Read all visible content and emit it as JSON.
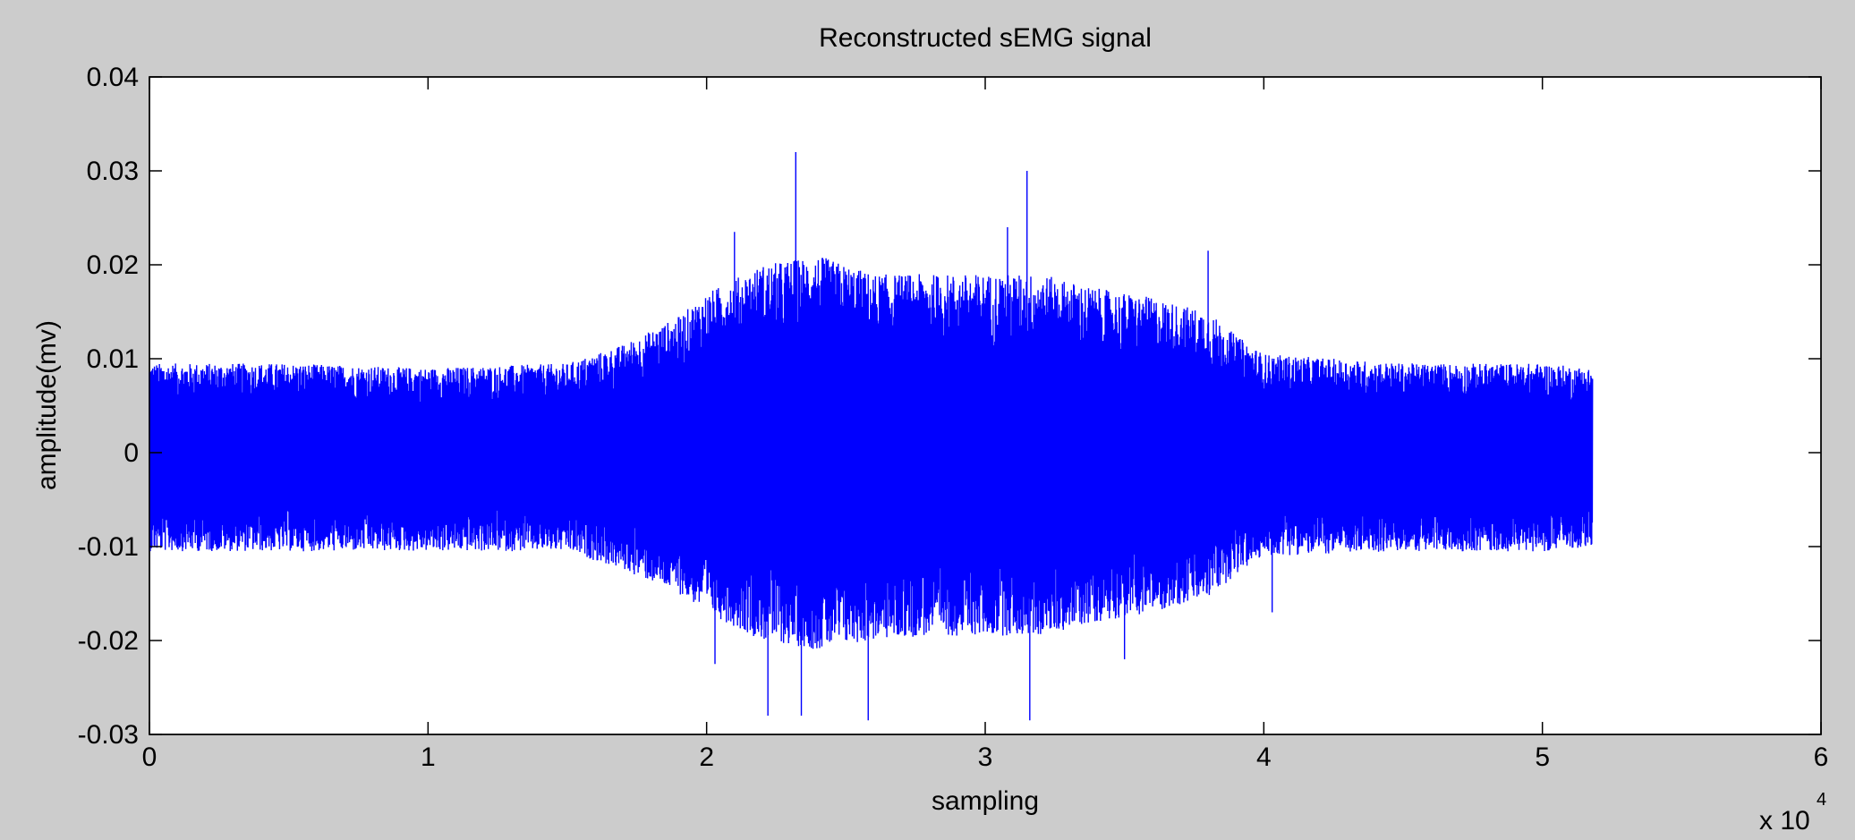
{
  "figure": {
    "background": "#cccccc",
    "axes_color": "#000000",
    "line_color": "#0000ff"
  },
  "chart_data": {
    "type": "line",
    "title": "Reconstructed sEMG signal",
    "xlabel": "sampling",
    "ylabel": "amplitude(mv)",
    "x_exponent_label": "x 10",
    "x_exponent_power": "4",
    "xlim": [
      0,
      60000
    ],
    "ylim": [
      -0.03,
      0.04
    ],
    "xticks": [
      0,
      10000,
      20000,
      30000,
      40000,
      50000,
      60000
    ],
    "xtick_labels": [
      "0",
      "1",
      "2",
      "3",
      "4",
      "5",
      "6"
    ],
    "yticks": [
      -0.03,
      -0.02,
      -0.01,
      0,
      0.01,
      0.02,
      0.03,
      0.04
    ],
    "ytick_labels": [
      "-0.03",
      "-0.02",
      "-0.01",
      "0",
      "0.01",
      "0.02",
      "0.03",
      "0.04"
    ],
    "grid": false,
    "series": [
      {
        "color": "#0000ff",
        "n_samples": 51800,
        "envelope": {
          "x": [
            0,
            2000,
            5000,
            10000,
            15000,
            17000,
            19000,
            20000,
            22000,
            24000,
            26000,
            28000,
            30000,
            32000,
            34000,
            36000,
            38000,
            39000,
            40000,
            45000,
            50000,
            51800
          ],
          "upper": [
            0.0095,
            0.0095,
            0.0095,
            0.009,
            0.0095,
            0.0115,
            0.0145,
            0.017,
            0.02,
            0.021,
            0.019,
            0.019,
            0.019,
            0.019,
            0.0175,
            0.0165,
            0.015,
            0.0125,
            0.0105,
            0.0095,
            0.0095,
            0.009
          ],
          "lower": [
            -0.0105,
            -0.0105,
            -0.0105,
            -0.0105,
            -0.0105,
            -0.0125,
            -0.015,
            -0.017,
            -0.02,
            -0.021,
            -0.02,
            -0.0195,
            -0.0195,
            -0.0195,
            -0.018,
            -0.017,
            -0.0155,
            -0.013,
            -0.011,
            -0.0105,
            -0.0105,
            -0.01
          ]
        },
        "peaks": [
          {
            "x": 23200,
            "y": 0.032
          },
          {
            "x": 31500,
            "y": 0.03
          },
          {
            "x": 30800,
            "y": 0.024
          },
          {
            "x": 21000,
            "y": 0.0235
          },
          {
            "x": 38000,
            "y": 0.0215
          },
          {
            "x": 25800,
            "y": -0.0285
          },
          {
            "x": 31600,
            "y": -0.0285
          },
          {
            "x": 22200,
            "y": -0.028
          },
          {
            "x": 23400,
            "y": -0.028
          },
          {
            "x": 20300,
            "y": -0.0225
          },
          {
            "x": 35000,
            "y": -0.022
          },
          {
            "x": 40300,
            "y": -0.017
          }
        ]
      }
    ]
  }
}
